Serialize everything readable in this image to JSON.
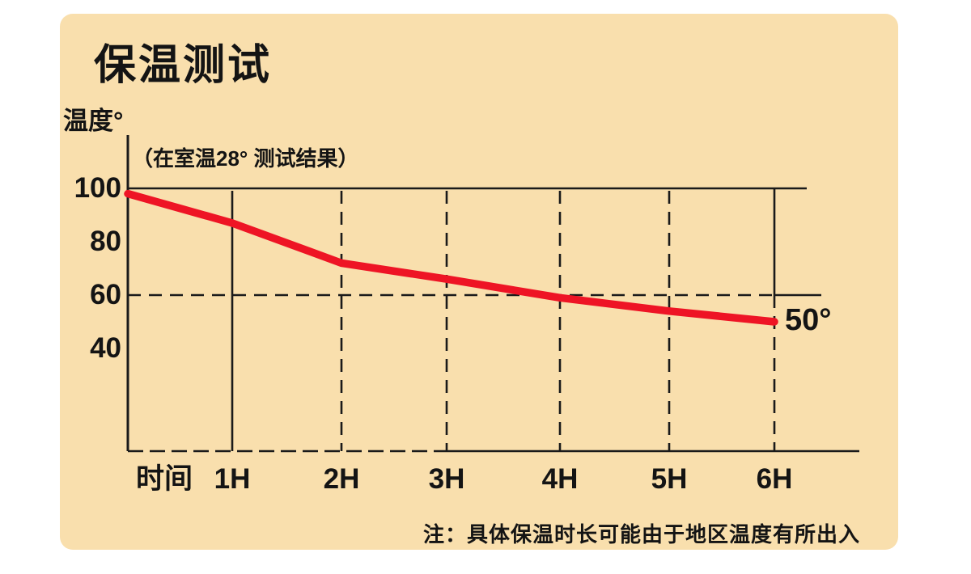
{
  "title": "保温测试",
  "y_axis_title": "温度°",
  "subtitle": "（在室温28° 测试结果）",
  "note": "注：具体保温时长可能由于地区温度有所出入",
  "colors": {
    "card_background": "#f9dfad",
    "page_background": "#ffffff",
    "axis_ink": "#1a1a1a",
    "curve_red": "#ee1425"
  },
  "chart_data": {
    "type": "line",
    "title": "保温测试",
    "subtitle": "（在室温28° 测试结果）",
    "xlabel": "时间",
    "ylabel": "温度°",
    "x_unit": "hours",
    "x": [
      0,
      1,
      2,
      3,
      4,
      5,
      6
    ],
    "x_tick_labels": [
      "1H",
      "2H",
      "3H",
      "4H",
      "5H",
      "6H"
    ],
    "y_ticks": [
      100,
      80,
      60,
      40
    ],
    "ylim": [
      20,
      105
    ],
    "grid": "mixed-solid-dashed",
    "legend": "none",
    "series": [
      {
        "name": "温度",
        "color": "#ee1425",
        "values": [
          98,
          87,
          72,
          66,
          59,
          54,
          50
        ]
      }
    ],
    "annotations": [
      {
        "text": "50°",
        "x": 6,
        "y": 50
      }
    ]
  }
}
